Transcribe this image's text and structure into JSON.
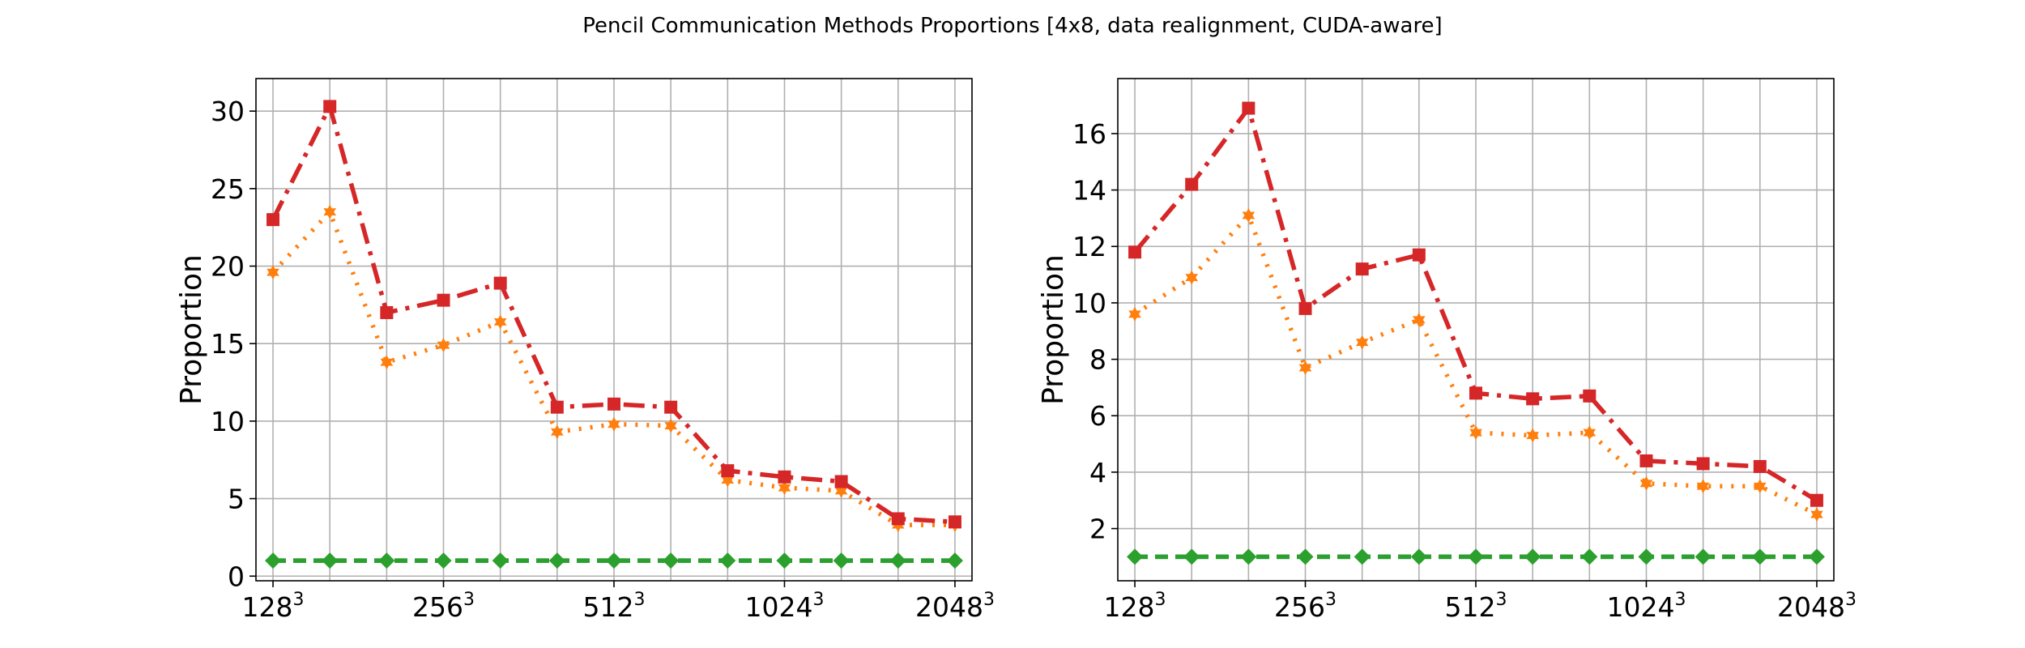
{
  "figure": {
    "title": "Pencil Communication Methods Proportions [4x8, data realignment, CUDA-aware]"
  },
  "x_tick_labels": [
    {
      "base": "128",
      "exp": "3"
    },
    {
      "base": "256",
      "exp": "3"
    },
    {
      "base": "512",
      "exp": "3"
    },
    {
      "base": "1024",
      "exp": "3"
    },
    {
      "base": "2048",
      "exp": "3"
    }
  ],
  "colors": {
    "red": "#d62728",
    "orange": "#ff7f0e",
    "green": "#2ca02c",
    "blue": "#1f77b4",
    "grid": "#b0b0b0"
  },
  "chart_data": [
    {
      "type": "line",
      "ylabel": "Proportion",
      "xlim": [
        -0.3,
        12.3
      ],
      "ylim": [
        -0.3,
        32.1
      ],
      "yticks": [
        0,
        5,
        10,
        15,
        20,
        25,
        30
      ],
      "x": [
        0,
        1,
        2,
        3,
        4,
        5,
        6,
        7,
        8,
        9,
        10,
        11,
        12
      ],
      "grid": true,
      "series": [
        {
          "color": "#ff7f0e",
          "style": "dotted",
          "marker": "star",
          "values": [
            19.6,
            23.5,
            13.8,
            14.9,
            16.4,
            9.3,
            9.8,
            9.7,
            6.2,
            5.7,
            5.5,
            3.3,
            3.3
          ]
        },
        {
          "color": "#d62728",
          "style": "dashdot",
          "marker": "square",
          "values": [
            23.0,
            30.3,
            17.0,
            17.8,
            18.9,
            10.9,
            11.1,
            10.9,
            6.8,
            6.4,
            6.1,
            3.7,
            3.5
          ]
        },
        {
          "color": "#1f77b4",
          "style": "dashed",
          "marker": "none",
          "values": [
            1.0,
            1.0,
            1.0,
            1.0,
            1.0,
            1.0,
            1.0,
            1.0,
            1.0,
            1.0,
            1.0,
            1.0,
            1.0
          ]
        },
        {
          "color": "#2ca02c",
          "style": "dashed",
          "marker": "diamond",
          "values": [
            1.0,
            1.0,
            1.0,
            1.0,
            1.0,
            1.0,
            1.0,
            1.0,
            1.0,
            1.0,
            1.0,
            1.0,
            1.0
          ]
        }
      ]
    },
    {
      "type": "line",
      "ylabel": "Proportion",
      "xlim": [
        -0.3,
        12.3
      ],
      "ylim": [
        0.15,
        17.95
      ],
      "yticks": [
        2,
        4,
        6,
        8,
        10,
        12,
        14,
        16
      ],
      "x": [
        0,
        1,
        2,
        3,
        4,
        5,
        6,
        7,
        8,
        9,
        10,
        11,
        12
      ],
      "grid": true,
      "series": [
        {
          "color": "#ff7f0e",
          "style": "dotted",
          "marker": "star",
          "values": [
            9.6,
            10.9,
            13.1,
            7.7,
            8.6,
            9.4,
            5.4,
            5.3,
            5.4,
            3.6,
            3.5,
            3.5,
            2.5
          ]
        },
        {
          "color": "#d62728",
          "style": "dashdot",
          "marker": "square",
          "values": [
            11.8,
            14.2,
            16.9,
            9.8,
            11.2,
            11.7,
            6.8,
            6.6,
            6.7,
            4.4,
            4.3,
            4.2,
            3.0
          ]
        },
        {
          "color": "#1f77b4",
          "style": "dashed",
          "marker": "none",
          "values": [
            1.0,
            1.0,
            1.0,
            1.0,
            1.0,
            1.0,
            1.0,
            1.0,
            1.0,
            1.0,
            1.0,
            1.0,
            1.0
          ]
        },
        {
          "color": "#2ca02c",
          "style": "dashed",
          "marker": "diamond",
          "values": [
            1.0,
            1.0,
            1.0,
            1.0,
            1.0,
            1.0,
            1.0,
            1.0,
            1.0,
            1.0,
            1.0,
            1.0,
            1.0
          ]
        }
      ]
    }
  ]
}
